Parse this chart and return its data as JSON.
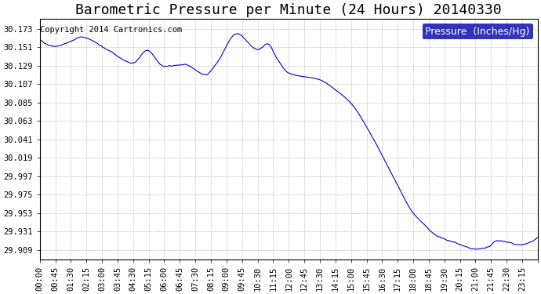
{
  "title": "Barometric Pressure per Minute (24 Hours) 20140330",
  "copyright": "Copyright 2014 Cartronics.com",
  "legend_label": "Pressure  (Inches/Hg)",
  "line_color": "#0000cc",
  "background_color": "#ffffff",
  "grid_color": "#aaaaaa",
  "yticks": [
    29.909,
    29.931,
    29.953,
    29.975,
    29.997,
    30.019,
    30.041,
    30.063,
    30.085,
    30.107,
    30.129,
    30.151,
    30.173
  ],
  "ylim": [
    29.898,
    30.185
  ],
  "xtick_labels": [
    "00:00",
    "00:45",
    "01:30",
    "02:15",
    "03:00",
    "03:45",
    "04:30",
    "05:15",
    "06:00",
    "06:45",
    "07:30",
    "08:15",
    "09:00",
    "09:45",
    "10:30",
    "11:15",
    "12:00",
    "12:45",
    "13:30",
    "14:15",
    "15:00",
    "15:45",
    "16:30",
    "17:15",
    "18:00",
    "18:45",
    "19:30",
    "20:15",
    "21:00",
    "21:45",
    "22:30",
    "23:15"
  ],
  "title_fontsize": 13,
  "tick_fontsize": 7.5,
  "legend_fontsize": 9,
  "copyright_fontsize": 7.5
}
